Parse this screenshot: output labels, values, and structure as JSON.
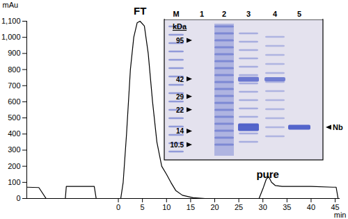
{
  "chart_data": {
    "type": "line",
    "y_label": "mAu",
    "x_label": "min",
    "xlim": [
      -19,
      46
    ],
    "xticks": [
      0,
      5,
      10,
      15,
      20,
      25,
      30,
      35,
      40,
      45
    ],
    "ylim": [
      0,
      1100
    ],
    "yticks": [
      0,
      100,
      200,
      300,
      400,
      500,
      600,
      700,
      800,
      900,
      1000,
      1100
    ],
    "color": "#000000",
    "x": [
      -19,
      -16.5,
      -15,
      -11,
      -10.8,
      -5,
      -4.6,
      0.5,
      1,
      1.7,
      2.5,
      3.2,
      3.9,
      4.5,
      5.4,
      6.2,
      7.1,
      8,
      9,
      10,
      10.9,
      11.9,
      13.3,
      15.5,
      18,
      29.2,
      30,
      30.7,
      31.2,
      31.8,
      32.6,
      34,
      40,
      44.5,
      45.2,
      45.6
    ],
    "values": [
      70,
      68,
      0,
      0,
      75,
      75,
      0,
      0,
      100,
      400,
      800,
      1000,
      1090,
      1100,
      1070,
      900,
      600,
      350,
      200,
      150,
      100,
      50,
      20,
      5,
      0,
      0,
      60,
      120,
      135,
      100,
      80,
      75,
      75,
      70,
      70,
      0
    ],
    "annotations": [
      {
        "text": "FT",
        "x": 4.5,
        "y": 1160
      },
      {
        "text": "pure",
        "x": 31,
        "y": 150
      }
    ]
  },
  "inset": {
    "type": "gel",
    "unit": "kDa",
    "lanes": [
      "M",
      "1",
      "2",
      "3",
      "4",
      "5"
    ],
    "markers": [
      95,
      42,
      29,
      22,
      14,
      10.5
    ],
    "band_label": "Nb"
  }
}
